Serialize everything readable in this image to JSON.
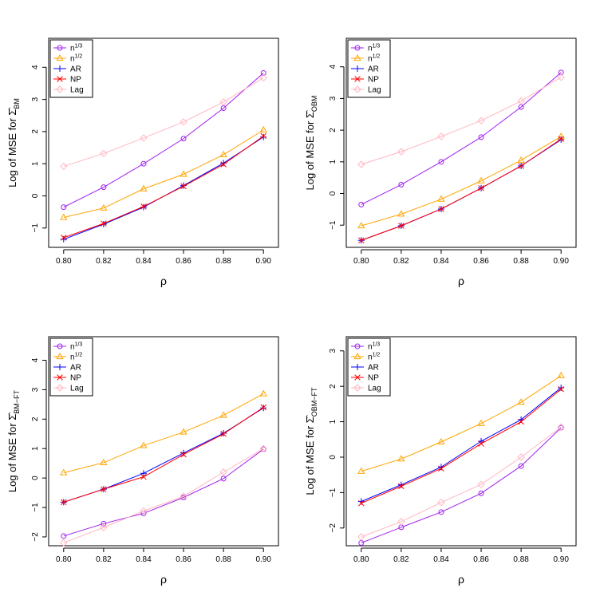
{
  "chart_data": [
    {
      "type": "line",
      "xlabel": "ρ",
      "ylabel": "Log of MSE for Σ̂",
      "ylabel_sub": "BM",
      "x": [
        0.8,
        0.82,
        0.84,
        0.86,
        0.88,
        0.9
      ],
      "xticks": [
        "0.80",
        "0.82",
        "0.84",
        "0.86",
        "0.88",
        "0.90"
      ],
      "ylim": [
        -1.6,
        4.9
      ],
      "yticks": [
        -1,
        0,
        1,
        2,
        3,
        4
      ],
      "legend_position": "top-left",
      "series": [
        {
          "name": "n^1/3",
          "values": [
            -0.35,
            0.27,
            1.0,
            1.78,
            2.73,
            3.82
          ]
        },
        {
          "name": "n^1/2",
          "values": [
            -0.67,
            -0.38,
            0.22,
            0.67,
            1.28,
            2.05
          ]
        },
        {
          "name": "AR",
          "values": [
            -1.35,
            -0.88,
            -0.35,
            0.32,
            1.02,
            1.83
          ]
        },
        {
          "name": "NP",
          "values": [
            -1.3,
            -0.86,
            -0.33,
            0.3,
            0.98,
            1.86
          ]
        },
        {
          "name": "Lag",
          "values": [
            0.92,
            1.32,
            1.8,
            2.3,
            2.92,
            3.67
          ]
        }
      ]
    },
    {
      "type": "line",
      "xlabel": "ρ",
      "ylabel": "Log of MSE for Σ̂",
      "ylabel_sub": "OBM",
      "x": [
        0.8,
        0.82,
        0.84,
        0.86,
        0.88,
        0.9
      ],
      "xticks": [
        "0.80",
        "0.82",
        "0.84",
        "0.86",
        "0.88",
        "0.90"
      ],
      "ylim": [
        -1.7,
        4.9
      ],
      "yticks": [
        -1,
        0,
        1,
        2,
        3,
        4
      ],
      "legend_position": "top-left",
      "series": [
        {
          "name": "n^1/3",
          "values": [
            -0.35,
            0.28,
            1.0,
            1.78,
            2.73,
            3.82
          ]
        },
        {
          "name": "n^1/2",
          "values": [
            -1.02,
            -0.65,
            -0.18,
            0.4,
            1.05,
            1.8
          ]
        },
        {
          "name": "AR",
          "values": [
            -1.48,
            -1.02,
            -0.49,
            0.17,
            0.87,
            1.7
          ]
        },
        {
          "name": "NP",
          "values": [
            -1.48,
            -1.02,
            -0.49,
            0.17,
            0.87,
            1.72
          ]
        },
        {
          "name": "Lag",
          "values": [
            0.92,
            1.32,
            1.8,
            2.3,
            2.92,
            3.67
          ]
        }
      ]
    },
    {
      "type": "line",
      "xlabel": "ρ",
      "ylabel": "Log of MSE for Σ̂",
      "ylabel_sub": "BM−FT",
      "x": [
        0.8,
        0.82,
        0.84,
        0.86,
        0.88,
        0.9
      ],
      "xticks": [
        "0.80",
        "0.82",
        "0.84",
        "0.86",
        "0.88",
        "0.90"
      ],
      "ylim": [
        -2.3,
        4.8
      ],
      "yticks": [
        -2,
        -1,
        0,
        1,
        2,
        3,
        4
      ],
      "legend_position": "top-left",
      "series": [
        {
          "name": "n^1/3",
          "values": [
            -1.97,
            -1.55,
            -1.2,
            -0.66,
            -0.02,
            0.98
          ]
        },
        {
          "name": "n^1/2",
          "values": [
            0.18,
            0.52,
            1.1,
            1.56,
            2.13,
            2.86
          ]
        },
        {
          "name": "AR",
          "values": [
            -0.82,
            -0.38,
            0.16,
            0.85,
            1.52,
            2.38
          ]
        },
        {
          "name": "NP",
          "values": [
            -0.82,
            -0.38,
            0.04,
            0.8,
            1.5,
            2.4
          ]
        },
        {
          "name": "Lag",
          "values": [
            -2.2,
            -1.68,
            -1.12,
            -0.62,
            0.2,
            1.0
          ]
        }
      ]
    },
    {
      "type": "line",
      "xlabel": "ρ",
      "ylabel": "Log of MSE for Σ̂",
      "ylabel_sub": "OBM−FT",
      "x": [
        0.8,
        0.82,
        0.84,
        0.86,
        0.88,
        0.9
      ],
      "xticks": [
        "0.80",
        "0.82",
        "0.84",
        "0.86",
        "0.88",
        "0.90"
      ],
      "ylim": [
        -2.5,
        3.4
      ],
      "yticks": [
        -2,
        -1,
        0,
        1,
        2,
        3
      ],
      "legend_position": "top-left",
      "series": [
        {
          "name": "n^1/3",
          "values": [
            -2.42,
            -1.98,
            -1.55,
            -1.02,
            -0.25,
            0.83
          ]
        },
        {
          "name": "n^1/2",
          "values": [
            -0.4,
            -0.05,
            0.43,
            0.95,
            1.55,
            2.3
          ]
        },
        {
          "name": "AR",
          "values": [
            -1.25,
            -0.78,
            -0.28,
            0.45,
            1.06,
            1.96
          ]
        },
        {
          "name": "NP",
          "values": [
            -1.3,
            -0.82,
            -0.32,
            0.38,
            1.0,
            1.92
          ]
        },
        {
          "name": "Lag",
          "values": [
            -2.25,
            -1.82,
            -1.28,
            -0.77,
            0.0,
            0.85
          ]
        }
      ]
    }
  ],
  "legend_labels": [
    {
      "base": "n",
      "sup": "1/3"
    },
    {
      "base": "n",
      "sup": "1/2"
    },
    {
      "base": "AR",
      "sup": ""
    },
    {
      "base": "NP",
      "sup": ""
    },
    {
      "base": "Lag",
      "sup": ""
    }
  ],
  "series_colors": [
    "#a020f0",
    "#ffa500",
    "#0000ff",
    "#ff0000",
    "#ffb6c1"
  ],
  "series_markers": [
    "circle",
    "triangle",
    "plus",
    "cross",
    "diamond"
  ]
}
